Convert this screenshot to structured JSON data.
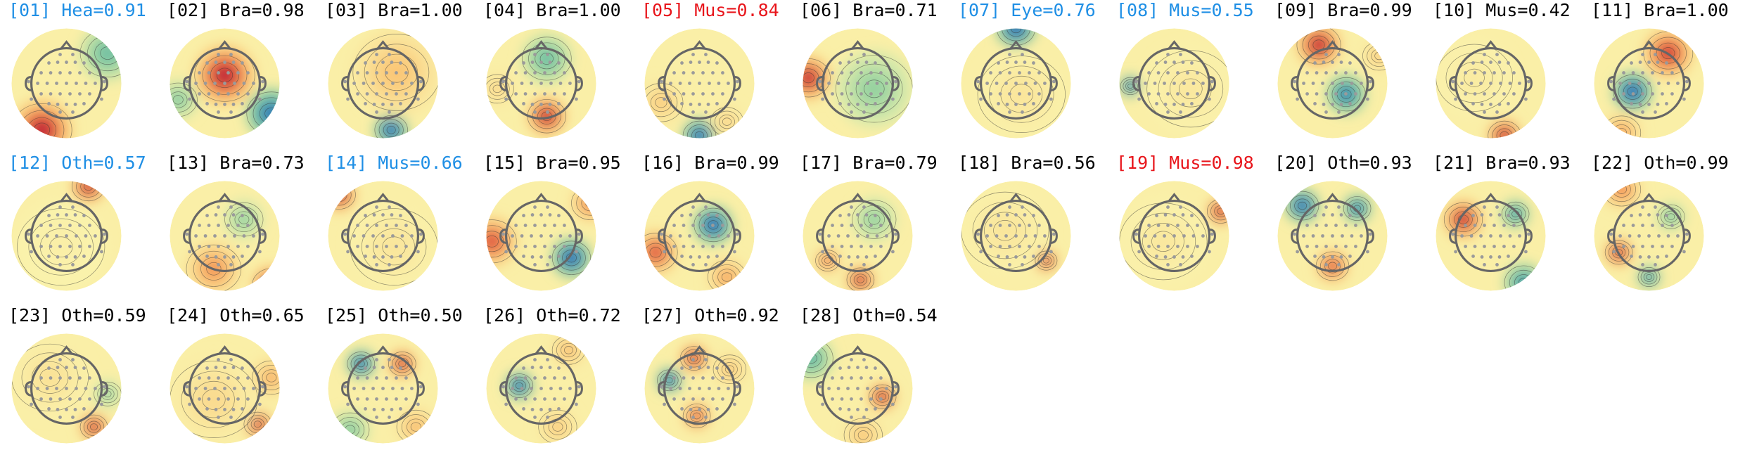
{
  "colors": {
    "label_blue": "#1f8fe5",
    "label_red": "#e8151b",
    "label_black": "#000000",
    "head_outline": "#666666",
    "electrode": "#9a9a9a",
    "colormap": "Spectral_r"
  },
  "components": [
    {
      "title": "[01] Hea=0.91",
      "label_color": "blue",
      "blobs": [
        {
          "dx": -0.45,
          "dy": 0.85,
          "r": 0.55,
          "v": 1.0
        },
        {
          "dx": 0.75,
          "dy": -0.55,
          "r": 0.5,
          "v": -0.45
        }
      ]
    },
    {
      "title": "[02] Bra=0.98",
      "label_color": "black",
      "blobs": [
        {
          "dx": 0.0,
          "dy": -0.15,
          "r": 0.55,
          "v": 1.0
        },
        {
          "dx": 0.85,
          "dy": 0.55,
          "r": 0.45,
          "v": -0.9
        },
        {
          "dx": -0.85,
          "dy": 0.3,
          "r": 0.35,
          "v": -0.35
        }
      ]
    },
    {
      "title": "[03] Bra=1.00",
      "label_color": "black",
      "blobs": [
        {
          "dx": 0.15,
          "dy": 0.85,
          "r": 0.3,
          "v": -1.0
        },
        {
          "dx": 0.25,
          "dy": -0.2,
          "r": 0.8,
          "v": 0.35
        }
      ]
    },
    {
      "title": "[04] Bra=1.00",
      "label_color": "black",
      "blobs": [
        {
          "dx": 0.1,
          "dy": 0.6,
          "r": 0.35,
          "v": 1.0
        },
        {
          "dx": 0.1,
          "dy": -0.45,
          "r": 0.45,
          "v": -0.45
        },
        {
          "dx": -0.8,
          "dy": 0.1,
          "r": 0.3,
          "v": 0.25
        }
      ]
    },
    {
      "title": "[05] Mus=0.84",
      "label_color": "red",
      "blobs": [
        {
          "dx": 0.0,
          "dy": 0.95,
          "r": 0.3,
          "v": -1.0
        },
        {
          "dx": -0.7,
          "dy": 0.35,
          "r": 0.4,
          "v": 0.3
        },
        {
          "dx": 0.5,
          "dy": 0.7,
          "r": 0.3,
          "v": 0.25
        }
      ]
    },
    {
      "title": "[06] Bra=0.71",
      "label_color": "black",
      "blobs": [
        {
          "dx": -0.9,
          "dy": -0.1,
          "r": 0.4,
          "v": 1.0
        },
        {
          "dx": 0.3,
          "dy": 0.1,
          "r": 0.7,
          "v": -0.3
        }
      ]
    },
    {
      "title": "[07] Eye=0.76",
      "label_color": "blue",
      "blobs": [
        {
          "dx": 0.0,
          "dy": -1.0,
          "r": 0.35,
          "v": -1.0
        },
        {
          "dx": 0.1,
          "dy": 0.2,
          "r": 0.8,
          "v": 0.12
        }
      ]
    },
    {
      "title": "[08] Mus=0.55",
      "label_color": "blue",
      "blobs": [
        {
          "dx": -0.8,
          "dy": 0.05,
          "r": 0.18,
          "v": -1.0
        },
        {
          "dx": 0.3,
          "dy": 0.1,
          "r": 0.8,
          "v": 0.1
        }
      ]
    },
    {
      "title": "[09] Bra=0.99",
      "label_color": "black",
      "blobs": [
        {
          "dx": -0.25,
          "dy": -0.7,
          "r": 0.4,
          "v": 1.0
        },
        {
          "dx": 0.25,
          "dy": 0.2,
          "r": 0.35,
          "v": -0.85
        },
        {
          "dx": 0.85,
          "dy": -0.5,
          "r": 0.3,
          "v": 0.3
        }
      ]
    },
    {
      "title": "[10] Mus=0.42",
      "label_color": "black",
      "blobs": [
        {
          "dx": 0.25,
          "dy": 0.95,
          "r": 0.3,
          "v": 1.0
        },
        {
          "dx": -0.3,
          "dy": -0.1,
          "r": 0.7,
          "v": 0.08
        }
      ]
    },
    {
      "title": "[11] Bra=1.00",
      "label_color": "black",
      "blobs": [
        {
          "dx": 0.35,
          "dy": -0.55,
          "r": 0.45,
          "v": 0.9
        },
        {
          "dx": -0.3,
          "dy": 0.15,
          "r": 0.35,
          "v": -1.0
        },
        {
          "dx": -0.5,
          "dy": 0.9,
          "r": 0.35,
          "v": 0.5
        }
      ]
    },
    {
      "title": "[12] Oth=0.57",
      "label_color": "blue",
      "blobs": [
        {
          "dx": 0.4,
          "dy": -0.9,
          "r": 0.3,
          "v": 1.0
        },
        {
          "dx": -0.1,
          "dy": 0.2,
          "r": 0.8,
          "v": 0.05
        }
      ]
    },
    {
      "title": "[13] Bra=0.73",
      "label_color": "black",
      "blobs": [
        {
          "dx": 0.85,
          "dy": 0.9,
          "r": 0.35,
          "v": 1.0
        },
        {
          "dx": 0.35,
          "dy": -0.3,
          "r": 0.35,
          "v": -0.3
        },
        {
          "dx": -0.2,
          "dy": 0.6,
          "r": 0.5,
          "v": 0.55
        }
      ]
    },
    {
      "title": "[14] Mus=0.66",
      "label_color": "blue",
      "blobs": [
        {
          "dx": -0.8,
          "dy": -0.75,
          "r": 0.3,
          "v": 1.0
        },
        {
          "dx": 0.2,
          "dy": 0.2,
          "r": 0.8,
          "v": 0.12
        }
      ]
    },
    {
      "title": "[15] Bra=0.95",
      "label_color": "black",
      "blobs": [
        {
          "dx": 0.55,
          "dy": 0.4,
          "r": 0.35,
          "v": -1.0
        },
        {
          "dx": -0.9,
          "dy": 0.1,
          "r": 0.45,
          "v": 0.8
        },
        {
          "dx": 0.9,
          "dy": -0.6,
          "r": 0.35,
          "v": 0.6
        }
      ]
    },
    {
      "title": "[16] Bra=0.99",
      "label_color": "black",
      "blobs": [
        {
          "dx": 0.25,
          "dy": -0.2,
          "r": 0.35,
          "v": -1.0
        },
        {
          "dx": -0.8,
          "dy": 0.3,
          "r": 0.4,
          "v": 0.8
        },
        {
          "dx": 0.5,
          "dy": 0.75,
          "r": 0.35,
          "v": 0.5
        }
      ]
    },
    {
      "title": "[17] Bra=0.79",
      "label_color": "black",
      "blobs": [
        {
          "dx": 0.05,
          "dy": 0.8,
          "r": 0.25,
          "v": 1.0
        },
        {
          "dx": -0.55,
          "dy": 0.45,
          "r": 0.22,
          "v": 0.7
        },
        {
          "dx": 0.3,
          "dy": -0.3,
          "r": 0.4,
          "v": -0.3
        }
      ]
    },
    {
      "title": "[18] Bra=0.56",
      "label_color": "black",
      "blobs": [
        {
          "dx": 0.55,
          "dy": 0.45,
          "r": 0.2,
          "v": 1.0
        },
        {
          "dx": -0.2,
          "dy": -0.1,
          "r": 0.8,
          "v": 0.12
        }
      ]
    },
    {
      "title": "[19] Mus=0.98",
      "label_color": "red",
      "blobs": [
        {
          "dx": 0.85,
          "dy": -0.45,
          "r": 0.25,
          "v": 1.0
        },
        {
          "dx": -0.2,
          "dy": 0.1,
          "r": 0.8,
          "v": 0.1
        }
      ]
    },
    {
      "title": "[20] Oth=0.93",
      "label_color": "black",
      "blobs": [
        {
          "dx": -0.55,
          "dy": -0.55,
          "r": 0.3,
          "v": -1.0
        },
        {
          "dx": 0.45,
          "dy": -0.5,
          "r": 0.25,
          "v": -0.9
        },
        {
          "dx": 0.0,
          "dy": 0.55,
          "r": 0.3,
          "v": 0.8
        }
      ]
    },
    {
      "title": "[21] Bra=0.93",
      "label_color": "black",
      "blobs": [
        {
          "dx": -0.5,
          "dy": -0.3,
          "r": 0.35,
          "v": 1.0
        },
        {
          "dx": 0.45,
          "dy": -0.4,
          "r": 0.25,
          "v": -0.7
        },
        {
          "dx": 0.6,
          "dy": 0.85,
          "r": 0.35,
          "v": -0.7
        }
      ]
    },
    {
      "title": "[22] Oth=0.99",
      "label_color": "black",
      "blobs": [
        {
          "dx": -0.55,
          "dy": 0.3,
          "r": 0.25,
          "v": 1.0
        },
        {
          "dx": 0.0,
          "dy": 0.75,
          "r": 0.2,
          "v": -0.8
        },
        {
          "dx": 0.4,
          "dy": -0.35,
          "r": 0.25,
          "v": -0.4
        },
        {
          "dx": -0.5,
          "dy": -0.85,
          "r": 0.35,
          "v": 0.6
        }
      ]
    },
    {
      "title": "[23] Oth=0.59",
      "label_color": "black",
      "blobs": [
        {
          "dx": 0.5,
          "dy": 0.7,
          "r": 0.25,
          "v": 1.0
        },
        {
          "dx": 0.75,
          "dy": 0.1,
          "r": 0.25,
          "v": -0.3
        },
        {
          "dx": -0.3,
          "dy": -0.2,
          "r": 0.7,
          "v": 0.15
        }
      ]
    },
    {
      "title": "[24] Oth=0.65",
      "label_color": "black",
      "blobs": [
        {
          "dx": 0.6,
          "dy": 0.65,
          "r": 0.25,
          "v": 1.0
        },
        {
          "dx": 0.85,
          "dy": -0.2,
          "r": 0.35,
          "v": 0.45
        },
        {
          "dx": -0.2,
          "dy": 0.2,
          "r": 0.8,
          "v": 0.2
        }
      ]
    },
    {
      "title": "[25] Oth=0.50",
      "label_color": "black",
      "blobs": [
        {
          "dx": -0.4,
          "dy": -0.45,
          "r": 0.25,
          "v": -1.0
        },
        {
          "dx": 0.35,
          "dy": -0.45,
          "r": 0.25,
          "v": 1.0
        },
        {
          "dx": -0.6,
          "dy": 0.75,
          "r": 0.35,
          "v": -0.35
        },
        {
          "dx": 0.6,
          "dy": 0.7,
          "r": 0.35,
          "v": 0.4
        }
      ]
    },
    {
      "title": "[26] Oth=0.72",
      "label_color": "black",
      "blobs": [
        {
          "dx": -0.4,
          "dy": -0.05,
          "r": 0.25,
          "v": -1.0
        },
        {
          "dx": 0.5,
          "dy": -0.7,
          "r": 0.3,
          "v": 0.4
        },
        {
          "dx": 0.3,
          "dy": 0.7,
          "r": 0.35,
          "v": 0.3
        }
      ]
    },
    {
      "title": "[27] Oth=0.92",
      "label_color": "black",
      "blobs": [
        {
          "dx": -0.55,
          "dy": -0.15,
          "r": 0.22,
          "v": -1.0
        },
        {
          "dx": -0.1,
          "dy": -0.55,
          "r": 0.25,
          "v": 1.0
        },
        {
          "dx": -0.05,
          "dy": 0.5,
          "r": 0.25,
          "v": 0.8
        },
        {
          "dx": 0.55,
          "dy": -0.35,
          "r": 0.3,
          "v": 0.35
        }
      ]
    },
    {
      "title": "[28] Oth=0.54",
      "label_color": "black",
      "blobs": [
        {
          "dx": 0.45,
          "dy": 0.15,
          "r": 0.25,
          "v": 1.0
        },
        {
          "dx": -0.85,
          "dy": -0.55,
          "r": 0.4,
          "v": -0.5
        },
        {
          "dx": 0.1,
          "dy": 0.85,
          "r": 0.35,
          "v": 0.35
        }
      ]
    }
  ]
}
